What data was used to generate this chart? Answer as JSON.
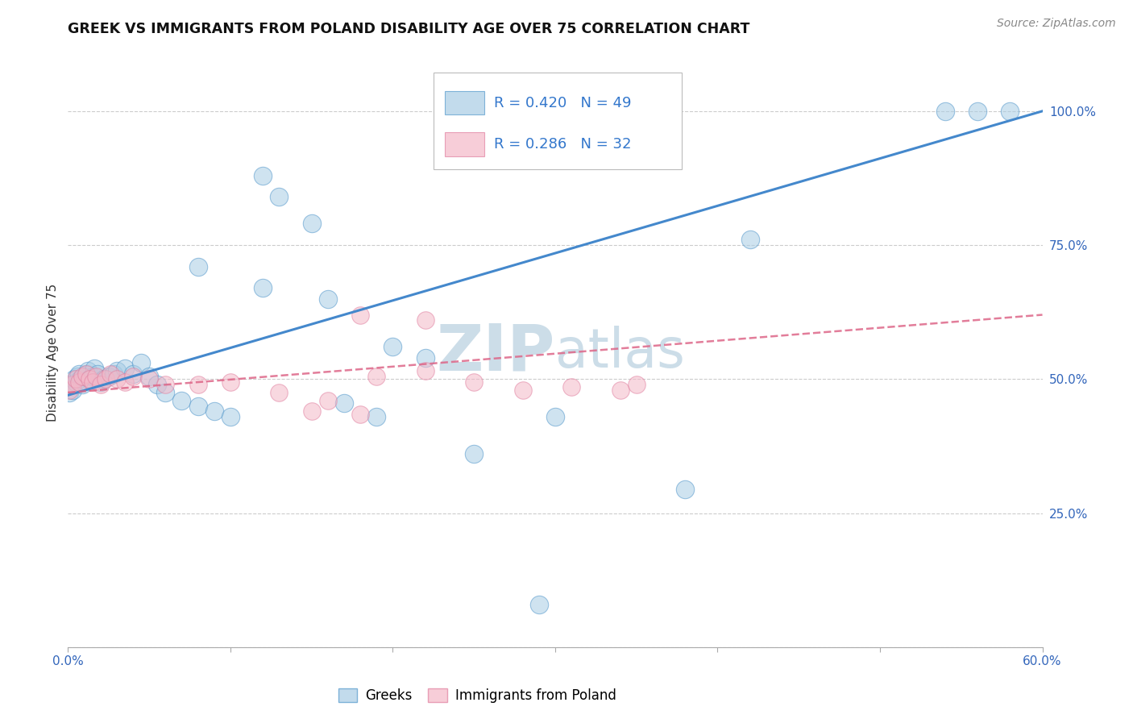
{
  "title": "GREEK VS IMMIGRANTS FROM POLAND DISABILITY AGE OVER 75 CORRELATION CHART",
  "source_text": "Source: ZipAtlas.com",
  "ylabel": "Disability Age Over 75",
  "xlim": [
    0.0,
    0.6
  ],
  "ylim": [
    0.0,
    1.1
  ],
  "xtick_vals": [
    0.0,
    0.1,
    0.2,
    0.3,
    0.4,
    0.5,
    0.6
  ],
  "xtick_show": [
    0.0,
    0.6
  ],
  "ytick_vals": [
    0.25,
    0.5,
    0.75,
    1.0
  ],
  "ytick_labels": [
    "25.0%",
    "50.0%",
    "75.0%",
    "100.0%"
  ],
  "R_greek": 0.42,
  "N_greek": 49,
  "R_poland": 0.286,
  "N_poland": 32,
  "greek_color": "#a8cce4",
  "poland_color": "#f4b8c8",
  "greek_edge_color": "#5599cc",
  "poland_edge_color": "#e080a0",
  "trend_blue": "#4488cc",
  "trend_pink": "#dd6688",
  "watermark_color": "#ccdde8",
  "legend_r_n_color": "#3377cc",
  "bottom_legend_labels": [
    "Greeks",
    "Immigrants from Poland"
  ],
  "greek_x": [
    0.001,
    0.002,
    0.003,
    0.004,
    0.005,
    0.006,
    0.007,
    0.008,
    0.009,
    0.01,
    0.011,
    0.012,
    0.013,
    0.015,
    0.016,
    0.018,
    0.02,
    0.022,
    0.025,
    0.028,
    0.03,
    0.035,
    0.04,
    0.045,
    0.05,
    0.055,
    0.06,
    0.07,
    0.08,
    0.09,
    0.1,
    0.12,
    0.13,
    0.15,
    0.17,
    0.19,
    0.22,
    0.25,
    0.3,
    0.38,
    0.42,
    0.08,
    0.12,
    0.16,
    0.2,
    0.54,
    0.56,
    0.58,
    0.29
  ],
  "greek_y": [
    0.475,
    0.49,
    0.48,
    0.5,
    0.495,
    0.505,
    0.51,
    0.5,
    0.49,
    0.505,
    0.51,
    0.515,
    0.5,
    0.505,
    0.52,
    0.51,
    0.495,
    0.5,
    0.505,
    0.51,
    0.515,
    0.52,
    0.51,
    0.53,
    0.505,
    0.49,
    0.475,
    0.46,
    0.45,
    0.44,
    0.43,
    0.88,
    0.84,
    0.79,
    0.455,
    0.43,
    0.54,
    0.36,
    0.43,
    0.295,
    0.76,
    0.71,
    0.67,
    0.65,
    0.56,
    1.0,
    1.0,
    1.0,
    0.08
  ],
  "poland_x": [
    0.001,
    0.003,
    0.005,
    0.007,
    0.009,
    0.011,
    0.013,
    0.015,
    0.017,
    0.02,
    0.023,
    0.026,
    0.03,
    0.035,
    0.04,
    0.05,
    0.06,
    0.08,
    0.1,
    0.13,
    0.16,
    0.19,
    0.22,
    0.25,
    0.28,
    0.31,
    0.34,
    0.18,
    0.22,
    0.15,
    0.18,
    0.35
  ],
  "poland_y": [
    0.48,
    0.49,
    0.5,
    0.495,
    0.505,
    0.51,
    0.5,
    0.495,
    0.505,
    0.49,
    0.5,
    0.51,
    0.5,
    0.495,
    0.505,
    0.5,
    0.49,
    0.49,
    0.495,
    0.475,
    0.46,
    0.505,
    0.515,
    0.495,
    0.48,
    0.485,
    0.48,
    0.62,
    0.61,
    0.44,
    0.435,
    0.49
  ],
  "trend_blue_y0": 0.47,
  "trend_blue_y1": 1.0,
  "trend_pink_y0": 0.475,
  "trend_pink_y1": 0.62
}
